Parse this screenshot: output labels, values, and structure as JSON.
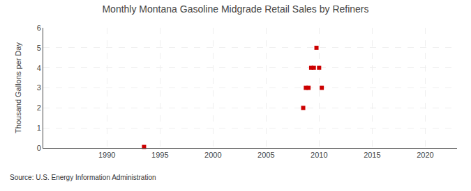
{
  "chart_data": {
    "type": "scatter",
    "title": "Monthly Montana Gasoline Midgrade Retail Sales by Refiners",
    "y_label": "Thousand Gallons per Day",
    "annotations": [
      "Source: U.S. Energy Information Administration"
    ],
    "x": [
      1993.5,
      2008.5,
      2008.75,
      2009.0,
      2009.25,
      2009.5,
      2009.75,
      2010.0,
      2010.25
    ],
    "values": [
      0.05,
      2.0,
      3.0,
      3.0,
      4.0,
      4.0,
      5.0,
      4.0,
      3.0
    ],
    "color": "#cc0000",
    "marker": "square",
    "xlim": [
      1984,
      2023
    ],
    "ylim": [
      0,
      6
    ],
    "xticks": [
      1990,
      1995,
      2000,
      2005,
      2010,
      2015,
      2020
    ],
    "yticks": [
      0,
      1,
      2,
      3,
      4,
      5,
      6
    ],
    "grid": true
  }
}
